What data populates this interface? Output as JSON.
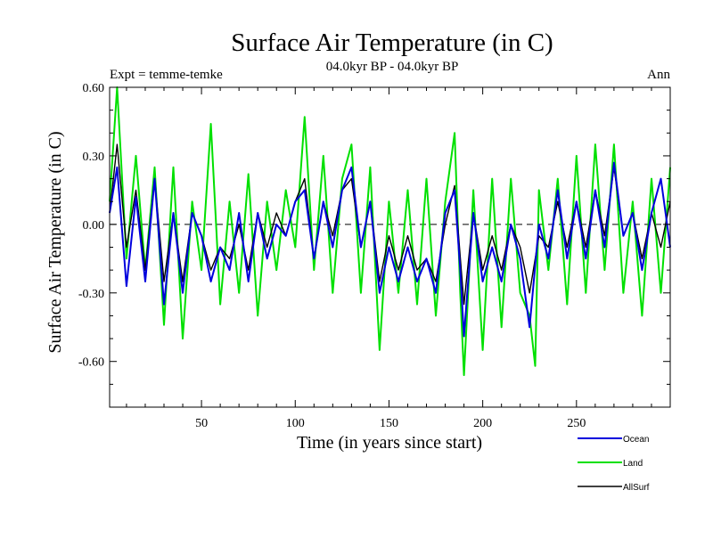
{
  "chart_data": {
    "type": "line",
    "title": "Surface Air Temperature (in C)",
    "subtitle": "04.0kyr BP - 04.0kyr BP",
    "left_label": "Expt = temme-temke",
    "right_label": "Ann",
    "xlabel": "Time (in years since start)",
    "ylabel": "Surface Air Temperature (in C)",
    "xlim": [
      1,
      300
    ],
    "ylim": [
      -0.8,
      0.6
    ],
    "x_ticks": [
      50,
      100,
      150,
      200,
      250
    ],
    "x_tick_labels": [
      "50",
      "100",
      "150",
      "200",
      "250"
    ],
    "y_ticks": [
      0.6,
      0.3,
      0.0,
      -0.3,
      -0.6
    ],
    "y_tick_labels": [
      "0.60",
      "0.30",
      "0.00",
      "-0.30",
      "-0.60"
    ],
    "zero_line": 0.0,
    "legend": [
      "Ocean",
      "Land",
      "AllSurf"
    ],
    "series": [
      {
        "name": "Land",
        "color": "#00e000",
        "x": [
          1,
          5,
          10,
          15,
          20,
          25,
          30,
          35,
          40,
          45,
          50,
          55,
          60,
          65,
          70,
          75,
          80,
          85,
          90,
          95,
          100,
          105,
          110,
          115,
          120,
          125,
          130,
          135,
          140,
          145,
          150,
          155,
          160,
          165,
          170,
          175,
          180,
          185,
          188,
          190,
          195,
          200,
          205,
          210,
          215,
          220,
          225,
          228,
          230,
          235,
          240,
          245,
          250,
          255,
          260,
          265,
          270,
          275,
          280,
          285,
          290,
          295,
          300
        ],
        "values": [
          0.1,
          0.6,
          -0.15,
          0.3,
          -0.2,
          0.25,
          -0.44,
          0.25,
          -0.5,
          0.1,
          -0.2,
          0.44,
          -0.35,
          0.1,
          -0.3,
          0.22,
          -0.4,
          0.1,
          -0.2,
          0.15,
          -0.1,
          0.47,
          -0.2,
          0.3,
          -0.3,
          0.2,
          0.35,
          -0.3,
          0.25,
          -0.55,
          0.1,
          -0.3,
          0.15,
          -0.35,
          0.2,
          -0.4,
          0.1,
          0.4,
          -0.3,
          -0.66,
          0.15,
          -0.55,
          0.2,
          -0.45,
          0.2,
          -0.3,
          -0.4,
          -0.62,
          0.15,
          -0.2,
          0.2,
          -0.35,
          0.3,
          -0.3,
          0.35,
          -0.2,
          0.35,
          -0.3,
          0.1,
          -0.4,
          0.2,
          -0.3,
          0.25
        ]
      },
      {
        "name": "AllSurf",
        "color": "#000000",
        "x": [
          1,
          5,
          10,
          15,
          20,
          25,
          30,
          35,
          40,
          45,
          50,
          55,
          60,
          65,
          70,
          75,
          80,
          85,
          90,
          95,
          100,
          105,
          110,
          115,
          120,
          125,
          130,
          135,
          140,
          145,
          150,
          155,
          160,
          165,
          170,
          175,
          180,
          185,
          190,
          195,
          200,
          205,
          210,
          215,
          220,
          225,
          230,
          235,
          240,
          245,
          250,
          255,
          260,
          265,
          270,
          275,
          280,
          285,
          290,
          295,
          300
        ],
        "values": [
          0.05,
          0.35,
          -0.1,
          0.15,
          -0.2,
          0.2,
          -0.25,
          0.05,
          -0.25,
          0.05,
          -0.05,
          -0.2,
          -0.1,
          -0.15,
          0.0,
          -0.2,
          0.05,
          -0.1,
          0.05,
          -0.05,
          0.1,
          0.2,
          -0.15,
          0.1,
          -0.05,
          0.15,
          0.2,
          -0.1,
          0.1,
          -0.25,
          -0.05,
          -0.2,
          -0.05,
          -0.2,
          -0.15,
          -0.25,
          0.0,
          0.17,
          -0.35,
          0.05,
          -0.2,
          -0.05,
          -0.2,
          0.0,
          -0.1,
          -0.3,
          -0.05,
          -0.1,
          0.1,
          -0.1,
          0.1,
          -0.1,
          0.15,
          -0.05,
          0.25,
          -0.05,
          0.05,
          -0.15,
          0.05,
          -0.1,
          0.1
        ]
      },
      {
        "name": "Ocean",
        "color": "#0000dd",
        "x": [
          1,
          5,
          10,
          15,
          20,
          25,
          30,
          35,
          40,
          45,
          50,
          55,
          60,
          65,
          70,
          75,
          80,
          85,
          90,
          95,
          100,
          105,
          110,
          115,
          120,
          125,
          130,
          135,
          140,
          145,
          150,
          155,
          160,
          165,
          170,
          175,
          180,
          185,
          188,
          190,
          195,
          200,
          205,
          210,
          215,
          220,
          225,
          230,
          235,
          240,
          245,
          250,
          255,
          260,
          265,
          270,
          275,
          280,
          285,
          290,
          295,
          300
        ],
        "values": [
          0.05,
          0.25,
          -0.27,
          0.12,
          -0.25,
          0.2,
          -0.35,
          0.05,
          -0.3,
          0.05,
          -0.05,
          -0.25,
          -0.1,
          -0.2,
          0.05,
          -0.25,
          0.05,
          -0.15,
          0.0,
          -0.05,
          0.1,
          0.15,
          -0.15,
          0.1,
          -0.1,
          0.15,
          0.25,
          -0.1,
          0.1,
          -0.3,
          -0.1,
          -0.25,
          -0.1,
          -0.25,
          -0.15,
          -0.3,
          0.05,
          0.15,
          -0.2,
          -0.49,
          0.05,
          -0.25,
          -0.1,
          -0.25,
          0.0,
          -0.15,
          -0.45,
          0.0,
          -0.15,
          0.15,
          -0.15,
          0.1,
          -0.15,
          0.15,
          -0.1,
          0.27,
          -0.05,
          0.05,
          -0.2,
          0.05,
          0.2,
          -0.1
        ]
      }
    ]
  }
}
